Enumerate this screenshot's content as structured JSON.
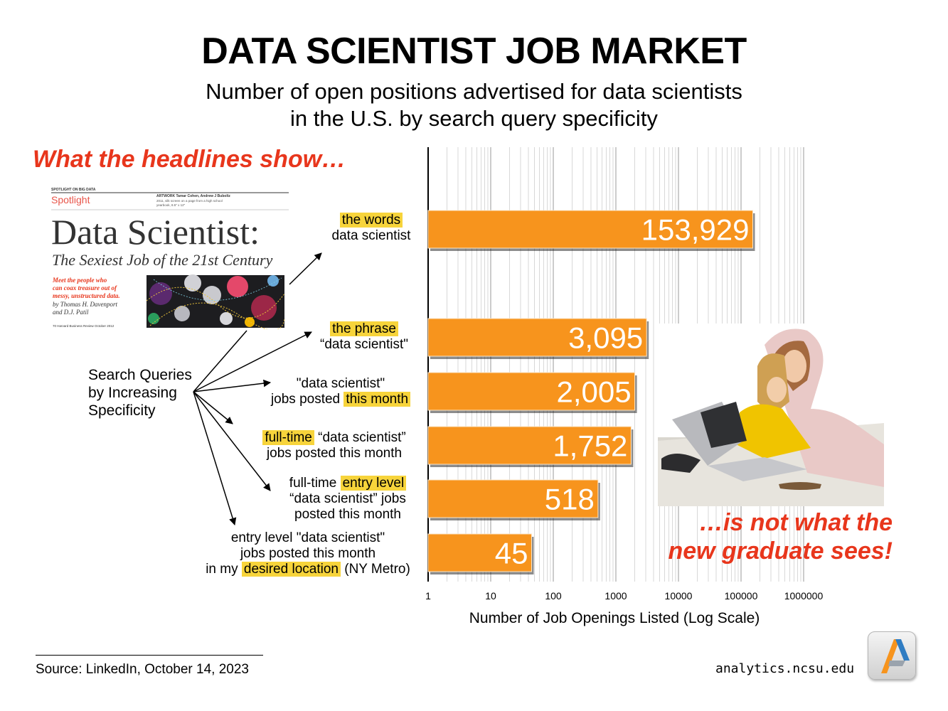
{
  "title": "DATA SCIENTIST JOB MARKET",
  "subtitle_line1": "Number of open positions advertised for data scientists",
  "subtitle_line2": "in the U.S. by search query specificity",
  "headline": "What the headlines show…",
  "not_what_line1": "…is not what the",
  "not_what_line2": "new graduate sees!",
  "search_queries": [
    "Search Queries",
    "by Increasing",
    "Specificity"
  ],
  "magazine": {
    "spotlight_on": "SPOTLIGHT ON BIG DATA",
    "spotlight": "Spotlight",
    "artwork_line1": "ARTWORK Tamar Cohen, Andrew J Buboltz",
    "artwork_line2": "2011, silk screen on a page from a high school",
    "artwork_line3": "yearbook, 8.5\" x 12\"",
    "headline": "Data Scientist:",
    "subhead": "The Sexiest Job of the 21st Century",
    "teaser1": "Meet the people who",
    "teaser2": "can coax treasure out of",
    "teaser3": "messy, unstructured data.",
    "byline1": "by Thomas H. Davenport",
    "byline2": "and D.J. Patil",
    "footer": "70 Harvard Business Review October 2012"
  },
  "queries": [
    {
      "pre1": "",
      "hl1": "the words",
      "post1": "",
      "pre2": "data scientist",
      "hl2": "",
      "post2": "",
      "line3": ""
    },
    {
      "pre1": "",
      "hl1": "the phrase",
      "post1": "",
      "pre2": "“data scientist\"",
      "hl2": "",
      "post2": "",
      "line3": ""
    },
    {
      "pre1": "\"data scientist\"",
      "hl1": "",
      "post1": "",
      "pre2": "jobs posted ",
      "hl2": "this month",
      "post2": "",
      "line3": ""
    },
    {
      "pre1": "",
      "hl1": "full-time",
      "post1": " “data scientist”",
      "pre2": "jobs posted this month",
      "hl2": "",
      "post2": "",
      "line3": ""
    },
    {
      "pre1": "full-time ",
      "hl1": "entry level",
      "post1": "",
      "pre2": "“data scientist” jobs",
      "hl2": "",
      "post2": "",
      "line3": "posted this month"
    },
    {
      "pre1": "entry level \"data scientist\"",
      "hl1": "",
      "post1": "",
      "pre2": "jobs posted this month",
      "hl2": "",
      "post2": "",
      "line3": "",
      "pre3": "in my ",
      "hl3": "desired location",
      "post3": " (NY Metro)"
    }
  ],
  "chart_data": {
    "type": "bar",
    "orientation": "horizontal",
    "x_scale": "log",
    "xlim": [
      1,
      1000000
    ],
    "xlabel": "Number of Job Openings Listed (Log Scale)",
    "ticks": [
      "1",
      "10",
      "100",
      "1000",
      "10000",
      "100000",
      "1000000"
    ],
    "bar_color": "#f7941d",
    "label_color": "#ffffff",
    "values": [
      153929,
      3095,
      2005,
      1752,
      518,
      45
    ],
    "value_labels": [
      "153,929",
      "3,095",
      "2,005",
      "1,752",
      "518",
      "45"
    ],
    "grid": true
  },
  "source": "Source: LinkedIn, October 14, 2023",
  "site": "analytics.ncsu.edu",
  "colors": {
    "accent_red": "#e8361c",
    "highlight": "#f7d43b",
    "bar": "#f7941d"
  },
  "icons": {
    "logo": "ncsu-analytics-logo",
    "photo": "students-with-laptops-photo"
  }
}
